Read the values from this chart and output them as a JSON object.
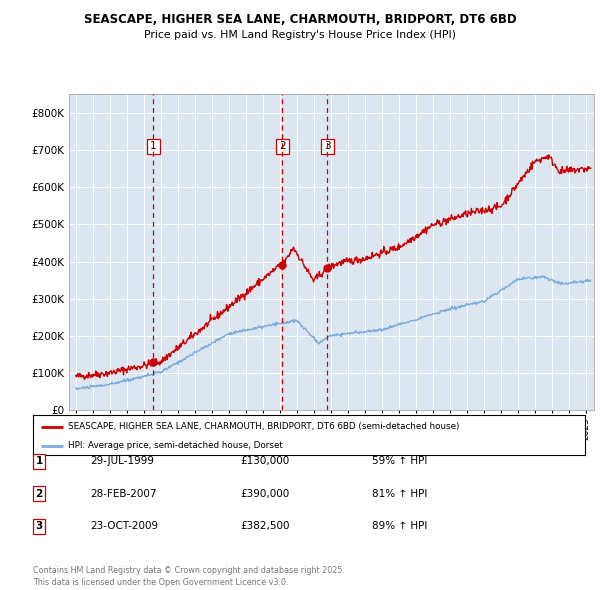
{
  "title": "SEASCAPE, HIGHER SEA LANE, CHARMOUTH, BRIDPORT, DT6 6BD",
  "subtitle": "Price paid vs. HM Land Registry's House Price Index (HPI)",
  "legend_line1": "SEASCAPE, HIGHER SEA LANE, CHARMOUTH, BRIDPORT, DT6 6BD (semi-detached house)",
  "legend_line2": "HPI: Average price, semi-detached house, Dorset",
  "footer": "Contains HM Land Registry data © Crown copyright and database right 2025.\nThis data is licensed under the Open Government Licence v3.0.",
  "transactions": [
    {
      "label": "1",
      "date": "29-JUL-1999",
      "price": 130000,
      "price_str": "£130,000",
      "hpi_pct": "59% ↑ HPI"
    },
    {
      "label": "2",
      "date": "28-FEB-2007",
      "price": 390000,
      "price_str": "£390,000",
      "hpi_pct": "81% ↑ HPI"
    },
    {
      "label": "3",
      "date": "23-OCT-2009",
      "price": 382500,
      "price_str": "£382,500",
      "hpi_pct": "89% ↑ HPI"
    }
  ],
  "transaction_dates_decimal": [
    1999.57,
    2007.16,
    2009.81
  ],
  "red_line_color": "#cc0000",
  "blue_line_color": "#7aaddb",
  "background_color": "#dce6f1",
  "plot_bg_color": "#dce6f1",
  "grid_color": "#ffffff",
  "ylim": [
    0,
    850000
  ],
  "yticks": [
    0,
    100000,
    200000,
    300000,
    400000,
    500000,
    600000,
    700000,
    800000
  ],
  "ytick_labels": [
    "£0",
    "£100K",
    "£200K",
    "£300K",
    "£400K",
    "£500K",
    "£600K",
    "£700K",
    "£800K"
  ],
  "xlim_start": 1994.6,
  "xlim_end": 2025.5
}
